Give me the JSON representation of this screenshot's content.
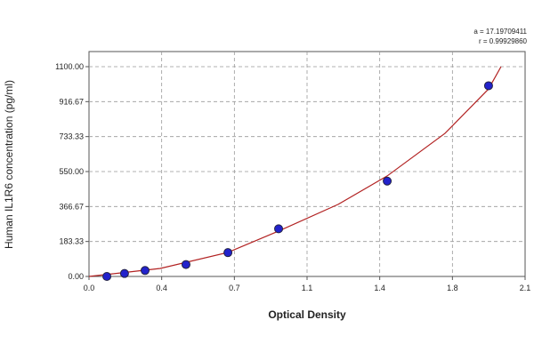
{
  "chart_data": {
    "type": "scatter",
    "title": "a = 17.19709411",
    "subtitle": "r = 0.99929860",
    "x_label": "Optical Density",
    "y_label": "Human IL1R6 concentration (pg/ml)",
    "x": [
      0.086,
      0.171,
      0.27,
      0.467,
      0.669,
      0.913,
      1.436,
      1.924
    ],
    "values": [
      0,
      15.6,
      31.25,
      62.5,
      125,
      250,
      500,
      1000
    ],
    "color": "#2222cc",
    "curve": {
      "color": "#b22222",
      "x": [
        0,
        0.343,
        0.669,
        0.913,
        1.2,
        1.436,
        1.714,
        1.924,
        1.984
      ],
      "values": [
        0,
        42,
        126,
        238,
        378,
        527,
        750,
        983,
        1100
      ]
    },
    "xlim": [
      0,
      2.1
    ],
    "xticks": [
      {
        "value": 0,
        "label": "0.0"
      },
      {
        "value": 0.35,
        "label": "0.4"
      },
      0.7,
      {
        "value": 1.05,
        "label": "1.1"
      },
      1.4,
      {
        "value": 1.75,
        "label": "1.8"
      },
      2.1
    ],
    "ylim": [
      0,
      1100
    ],
    "yticks": [
      {
        "value": 0,
        "label": "0.00"
      },
      183.33,
      366.67,
      {
        "value": 550,
        "label": "550.00"
      },
      733.33,
      916.67,
      {
        "value": 1100,
        "label": "1100.00"
      }
    ],
    "grid": true
  }
}
